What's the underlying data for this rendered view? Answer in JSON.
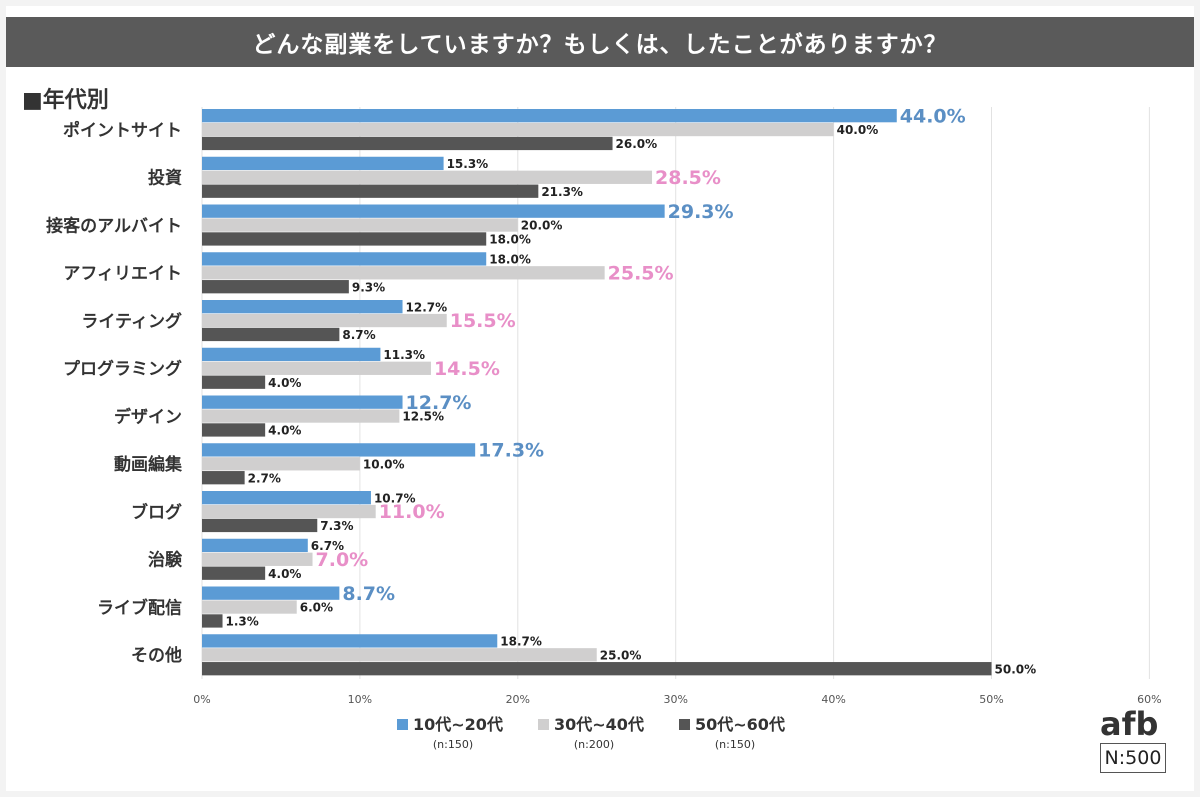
{
  "title": "どんな副業をしていますか？もしくは、したことがありますか？",
  "section_label": "■年代別",
  "logo": "afb",
  "sample_size": "N:500",
  "colors": {
    "series1": "#5b9bd5",
    "series2": "#d0cfcf",
    "series3": "#555555",
    "highlight_blue": "#5b8fc4",
    "highlight_pink": "#e88fc8"
  },
  "chart_data": {
    "type": "bar",
    "orientation": "horizontal",
    "categories": [
      "ポイントサイト",
      "投資",
      "接客のアルバイト",
      "アフィリエイト",
      "ライティング",
      "プログラミング",
      "デザイン",
      "動画編集",
      "ブログ",
      "治験",
      "ライブ配信",
      "その他"
    ],
    "series": [
      {
        "name": "10代~20代",
        "sub": "(n:150)",
        "values": [
          44.0,
          15.3,
          29.3,
          18.0,
          12.7,
          11.3,
          12.7,
          17.3,
          10.7,
          6.7,
          8.7,
          18.7
        ]
      },
      {
        "name": "30代~40代",
        "sub": "(n:200)",
        "values": [
          40.0,
          28.5,
          20.0,
          25.5,
          15.5,
          14.5,
          12.5,
          10.0,
          11.0,
          7.0,
          6.0,
          25.0
        ]
      },
      {
        "name": "50代~60代",
        "sub": "(n:150)",
        "values": [
          26.0,
          21.3,
          18.0,
          9.3,
          8.7,
          4.0,
          4.0,
          2.7,
          7.3,
          4.0,
          1.3,
          50.0
        ]
      }
    ],
    "highlight": [
      0,
      1,
      0,
      1,
      1,
      1,
      0,
      0,
      1,
      1,
      0,
      -1
    ],
    "xlim": [
      0,
      60
    ],
    "xticks": [
      "0%",
      "10%",
      "20%",
      "30%",
      "40%",
      "50%",
      "60%"
    ],
    "grid": true,
    "legend_position": "bottom"
  }
}
